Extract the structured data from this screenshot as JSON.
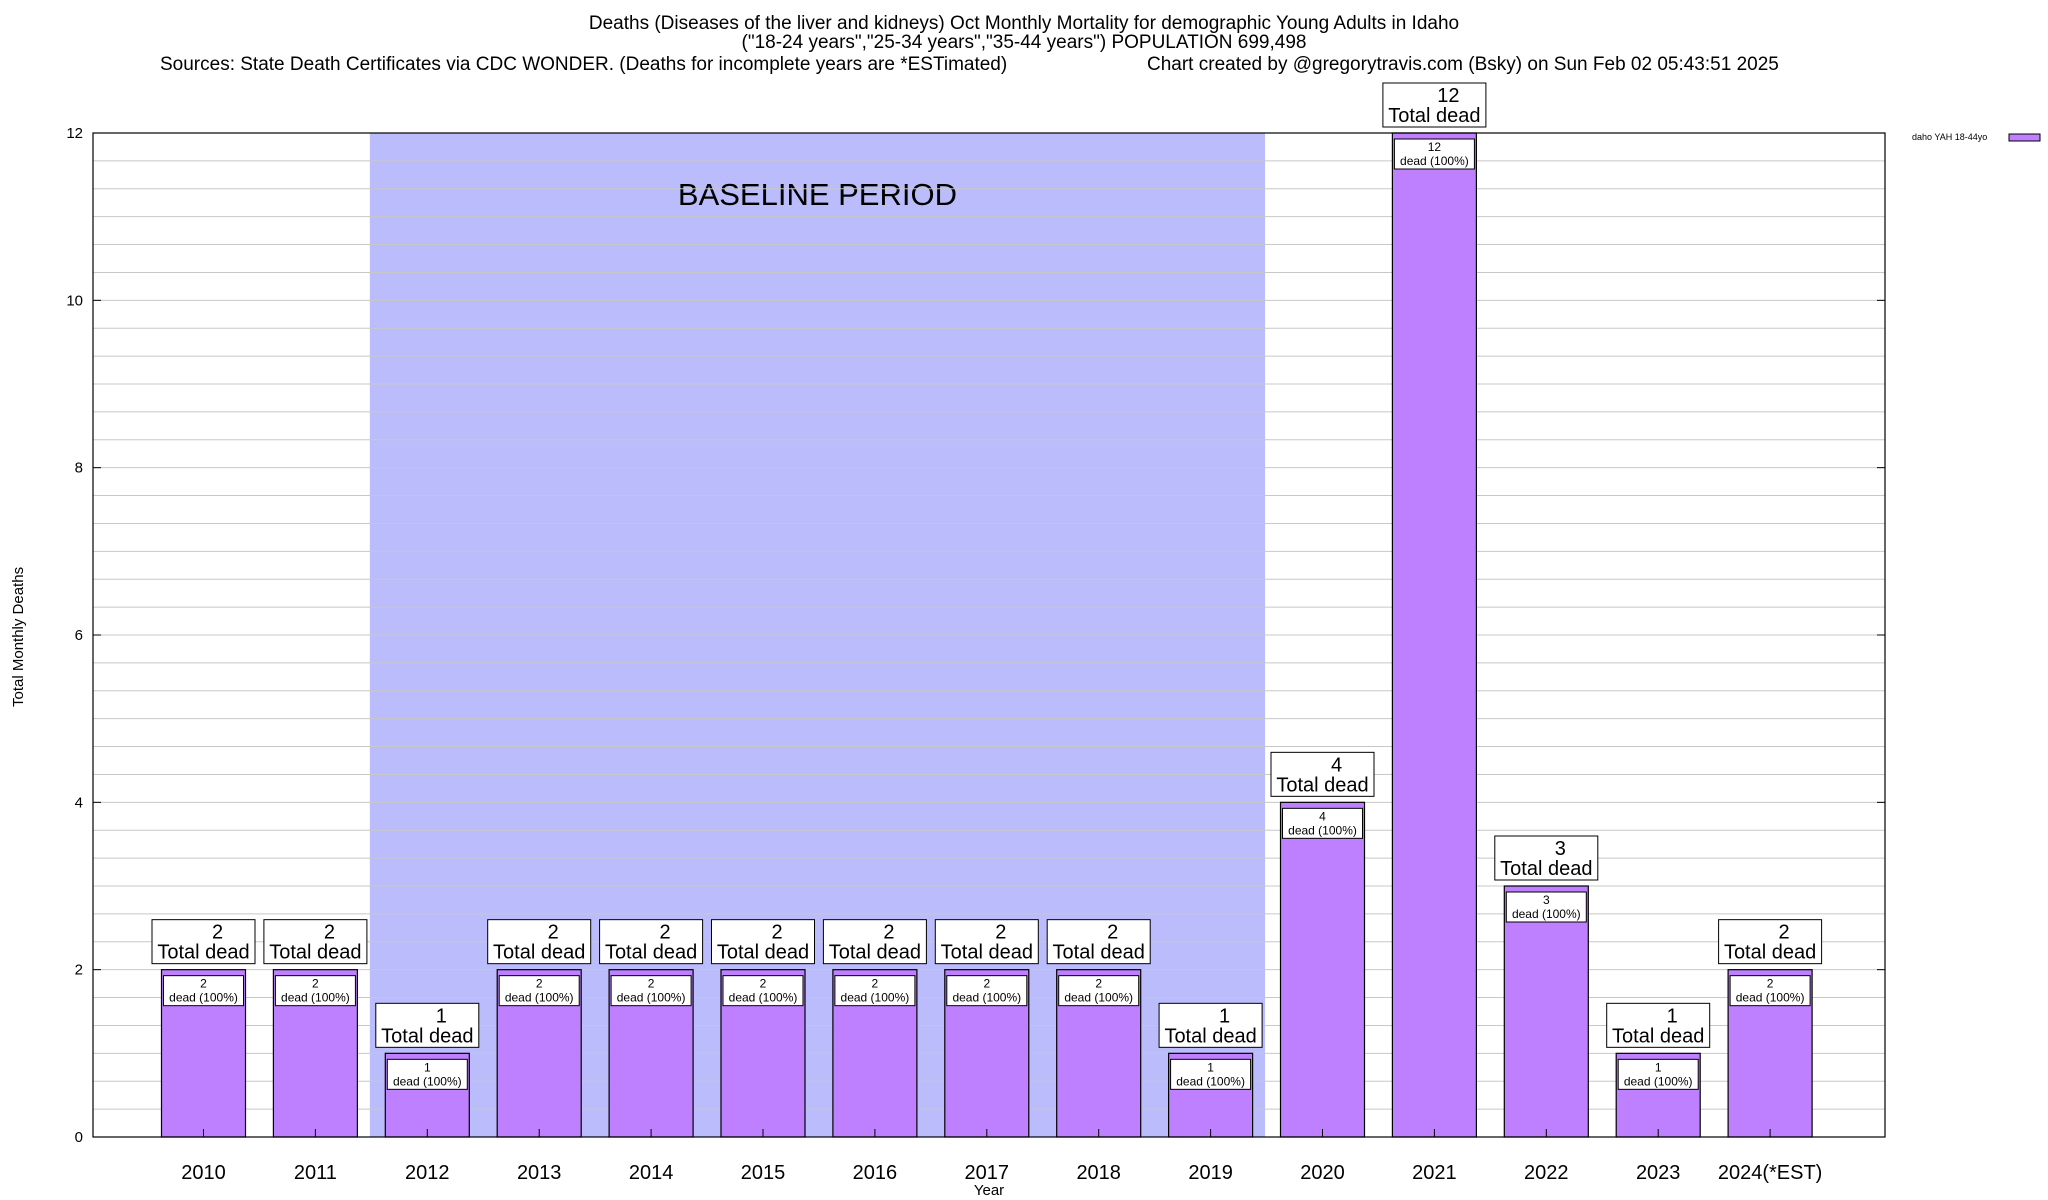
{
  "chart_data": {
    "type": "bar",
    "title": "Deaths (Diseases of the liver and kidneys) Oct Monthly Mortality for demographic Young Adults in Idaho",
    "subtitle": "(\"18-24 years\",\"25-34 years\",\"35-44 years\") POPULATION 699,498",
    "sources": "Sources: State Death Certificates via CDC WONDER. (Deaths for incomplete years are *ESTimated)",
    "credit": "Chart created by @gregorytravis.com (Bsky) on Sun Feb 02 05:43:51 2025",
    "xlabel": "Year",
    "ylabel": "Total Monthly Deaths",
    "ylim": [
      0,
      12
    ],
    "yticks": [
      "0",
      "2",
      "4",
      "6",
      "8",
      "10",
      "12"
    ],
    "grid": true,
    "legend": {
      "placement": "top-right",
      "entry": "daho YAH 18-44yo"
    },
    "baseline": {
      "label": "BASELINE PERIOD",
      "start": "2012",
      "end": "2019"
    },
    "total_label": "Total dead",
    "inner_label": "dead (100%)",
    "categories": [
      "2010",
      "2011",
      "2012",
      "2013",
      "2014",
      "2015",
      "2016",
      "2017",
      "2018",
      "2019",
      "2020",
      "2021",
      "2022",
      "2023",
      "2024(*EST)"
    ],
    "series": [
      {
        "name": "daho YAH 18-44yo",
        "values": [
          2,
          2,
          1,
          2,
          2,
          2,
          2,
          2,
          2,
          1,
          4,
          12,
          3,
          1,
          2
        ]
      }
    ]
  },
  "colors": {
    "bar": "#bf80ff",
    "baseline": "#bbbcfc",
    "grid": "#c8c8c8"
  }
}
